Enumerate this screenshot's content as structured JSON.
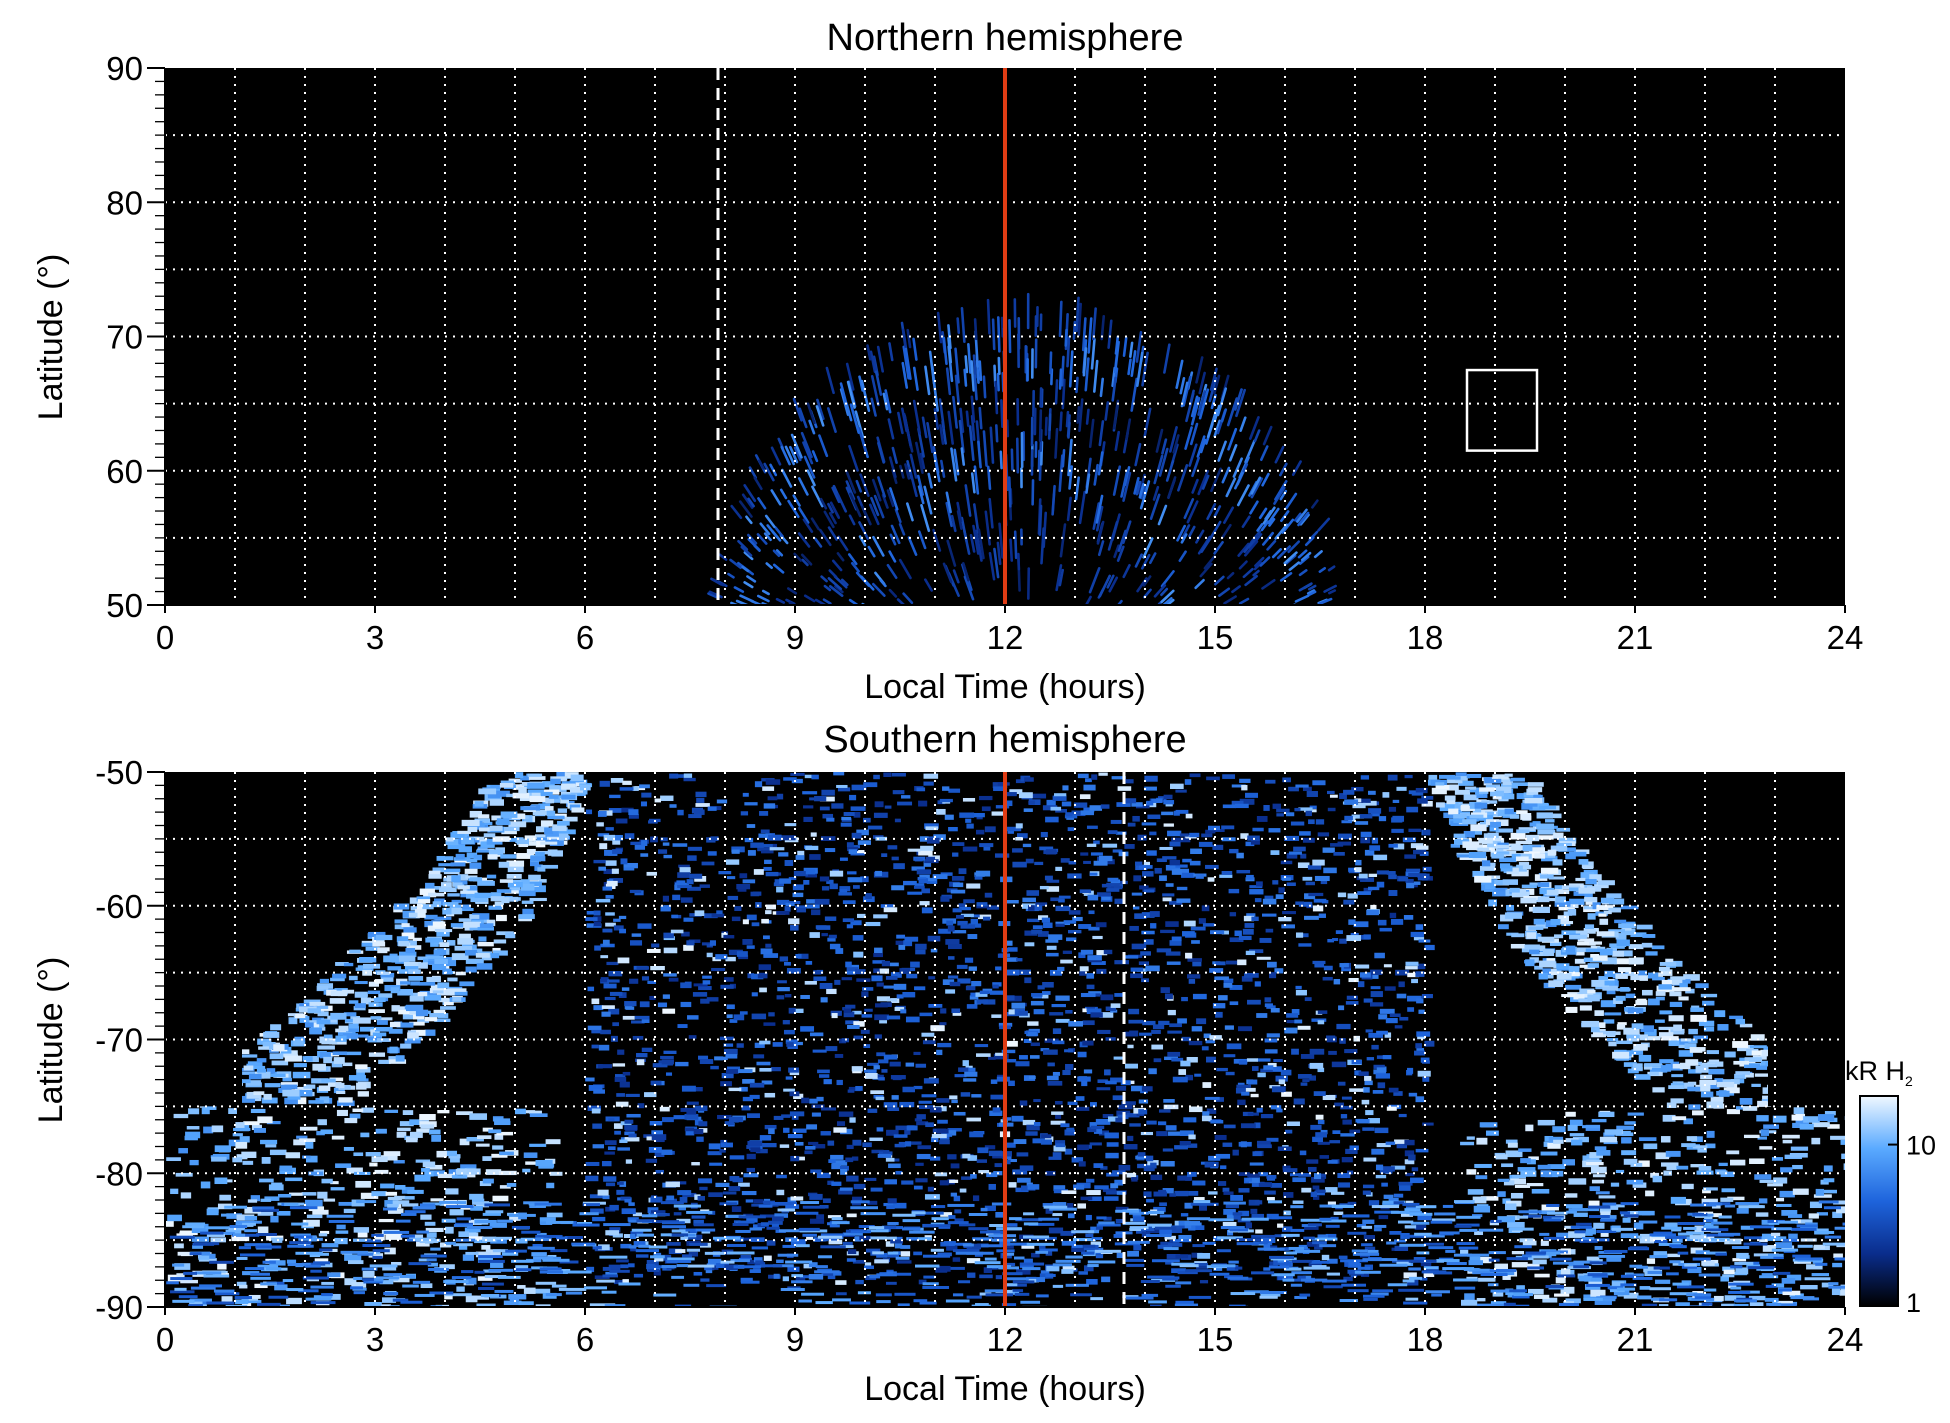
{
  "chart_data": [
    {
      "type": "heatmap",
      "title": "Northern hemisphere",
      "xlabel": "Local Time (hours)",
      "ylabel": "Latitude (°)",
      "xlim": [
        0,
        24
      ],
      "ylim": [
        50,
        90
      ],
      "xticks": [
        "0",
        "3",
        "6",
        "9",
        "12",
        "15",
        "18",
        "21",
        "24"
      ],
      "yticks": [
        "50",
        "60",
        "70",
        "80",
        "90"
      ],
      "grid": true,
      "colormap": [
        "#000000",
        "#0a2d8c",
        "#1e64dc",
        "#5aaaff",
        "#f0f8ff"
      ],
      "emission_region": {
        "center_lt": 12.3,
        "center_lat": 47.0,
        "outer_lt_half_width": 4.6,
        "outer_lat_top": 72,
        "intensity": "low"
      },
      "reference_lines": [
        {
          "x": 12.0,
          "style": "solid",
          "color": "#e03c14"
        },
        {
          "x": 7.9,
          "style": "dashed",
          "color": "#ffffff"
        }
      ],
      "box": {
        "x": [
          18.6,
          19.6
        ],
        "y": [
          61.5,
          67.5
        ],
        "color": "#ffffff"
      }
    },
    {
      "type": "heatmap",
      "title": "Southern hemisphere",
      "xlabel": "Local Time (hours)",
      "ylabel": "Latitude (°)",
      "xlim": [
        0,
        24
      ],
      "ylim": [
        -90,
        -50
      ],
      "xticks": [
        "0",
        "3",
        "6",
        "9",
        "12",
        "15",
        "18",
        "21",
        "24"
      ],
      "yticks": [
        "-90",
        "-80",
        "-70",
        "-60",
        "-50"
      ],
      "grid": true,
      "emission_region": {
        "inner_dark_lt": [
          6,
          18
        ],
        "bright_oval_lt": [
          [
            3,
            6
          ],
          [
            18,
            21
          ]
        ],
        "oval_lat_top": -75,
        "intensity": "high"
      },
      "reference_lines": [
        {
          "x": 12.0,
          "style": "solid",
          "color": "#e03c14"
        },
        {
          "x": 13.7,
          "style": "dashed",
          "color": "#ffffff"
        }
      ],
      "colorbar": {
        "label": "kR H",
        "label_sub": "2",
        "ticks": [
          "1",
          "10"
        ],
        "scale": "log",
        "range": [
          1,
          20
        ]
      }
    }
  ]
}
